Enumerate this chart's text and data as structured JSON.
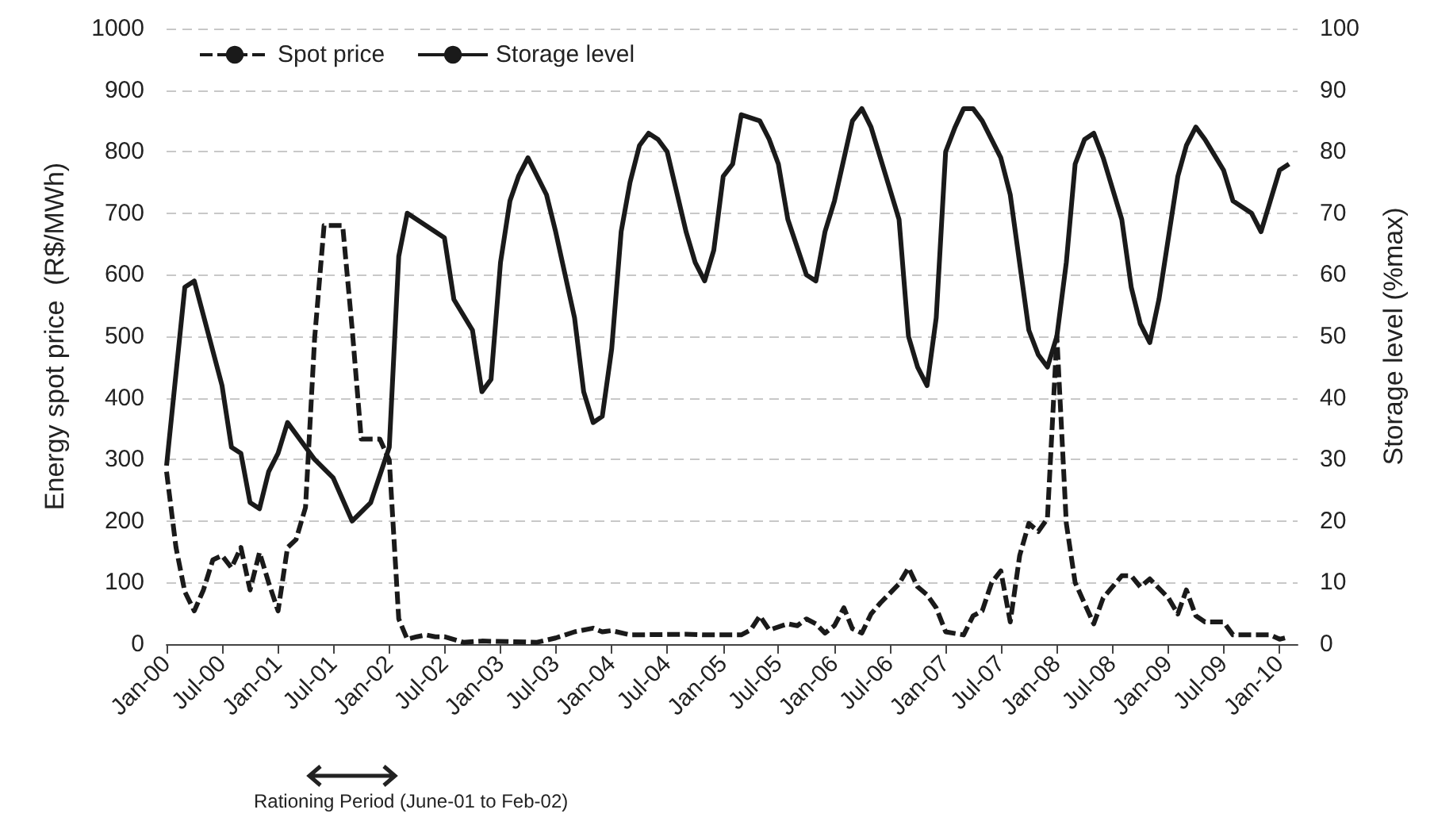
{
  "chart_data": {
    "type": "line",
    "ylabel": "Energy spot price  (R$/MWh)",
    "y2label": "Storage level (%max)",
    "xlim": [
      "2000-01",
      "2010-03"
    ],
    "xticks": [
      {
        "value": "2000-01",
        "label": "Jan-00"
      },
      {
        "value": "2000-07",
        "label": "Jul-00"
      },
      {
        "value": "2001-01",
        "label": "Jan-01"
      },
      {
        "value": "2001-07",
        "label": "Jul-01"
      },
      {
        "value": "2002-01",
        "label": "Jan-02"
      },
      {
        "value": "2002-07",
        "label": "Jul-02"
      },
      {
        "value": "2003-01",
        "label": "Jan-03"
      },
      {
        "value": "2003-07",
        "label": "Jul-03"
      },
      {
        "value": "2004-01",
        "label": "Jan-04"
      },
      {
        "value": "2004-07",
        "label": "Jul-04"
      },
      {
        "value": "2005-01",
        "label": "Jan-05"
      },
      {
        "value": "2005-07",
        "label": "Jul-05"
      },
      {
        "value": "2006-01",
        "label": "Jan-06"
      },
      {
        "value": "2006-07",
        "label": "Jul-06"
      },
      {
        "value": "2007-01",
        "label": "Jan-07"
      },
      {
        "value": "2007-07",
        "label": "Jul-07"
      },
      {
        "value": "2008-01",
        "label": "Jan-08"
      },
      {
        "value": "2008-07",
        "label": "Jul-08"
      },
      {
        "value": "2009-01",
        "label": "Jan-09"
      },
      {
        "value": "2009-07",
        "label": "Jul-09"
      },
      {
        "value": "2010-01",
        "label": "Jan-10"
      }
    ],
    "ylim": [
      0,
      1000
    ],
    "yticks": [
      0,
      100,
      200,
      300,
      400,
      500,
      600,
      700,
      800,
      900,
      1000
    ],
    "y2lim": [
      0,
      100
    ],
    "y2ticks": [
      0,
      10,
      20,
      30,
      40,
      50,
      60,
      70,
      80,
      90,
      100
    ],
    "grid": "y",
    "legend": "top left",
    "marker": "none",
    "annotations": [
      "Rationing Period (June-01 to Feb-02)"
    ],
    "series": [
      {
        "name": "Spot price",
        "color": "#1a1a1a",
        "line_style": "dashed",
        "x": [
          "2000-01",
          "2000-02",
          "2000-03",
          "2000-04",
          "2000-05",
          "2000-06",
          "2000-07",
          "2000-08",
          "2000-09",
          "2000-10",
          "2000-11",
          "2000-12",
          "2001-01",
          "2001-02",
          "2001-03",
          "2001-04",
          "2001-05",
          "2001-06",
          "2001-07",
          "2001-08",
          "2001-09",
          "2001-10",
          "2001-11",
          "2001-12",
          "2002-01",
          "2002-02",
          "2002-03",
          "2002-04",
          "2002-05",
          "2002-06",
          "2002-07",
          "2002-09",
          "2002-11",
          "2003-05",
          "2003-07",
          "2003-09",
          "2003-11",
          "2003-12",
          "2004-01",
          "2004-03",
          "2004-09",
          "2004-11",
          "2005-03",
          "2005-04",
          "2005-05",
          "2005-06",
          "2005-08",
          "2005-09",
          "2005-10",
          "2005-11",
          "2005-12",
          "2006-01",
          "2006-02",
          "2006-03",
          "2006-04",
          "2006-05",
          "2006-06",
          "2006-08",
          "2006-09",
          "2006-10",
          "2006-11",
          "2006-12",
          "2007-01",
          "2007-03",
          "2007-04",
          "2007-05",
          "2007-06",
          "2007-07",
          "2007-08",
          "2007-09",
          "2007-10",
          "2007-11",
          "2007-12",
          "2008-01",
          "2008-02",
          "2008-03",
          "2008-05",
          "2008-06",
          "2008-08",
          "2008-09",
          "2008-10",
          "2008-11",
          "2009-01",
          "2009-02",
          "2009-03",
          "2009-04",
          "2009-05",
          "2009-07",
          "2009-08",
          "2009-12",
          "2010-01",
          "2010-02"
        ],
        "values": [
          280,
          157,
          85,
          54,
          88,
          137,
          144,
          124,
          157,
          88,
          149,
          100,
          54,
          157,
          170,
          222,
          497,
          680,
          680,
          680,
          513,
          333,
          333,
          333,
          299,
          41,
          8,
          12,
          15,
          12,
          12,
          3,
          5,
          3,
          10,
          20,
          26,
          20,
          22,
          15,
          16,
          15,
          15,
          23,
          46,
          23,
          33,
          30,
          41,
          33,
          18,
          30,
          59,
          25,
          18,
          49,
          67,
          98,
          124,
          93,
          80,
          59,
          20,
          15,
          46,
          54,
          100,
          119,
          36,
          144,
          196,
          183,
          204,
          500,
          196,
          100,
          33,
          75,
          111,
          111,
          93,
          106,
          75,
          49,
          88,
          46,
          36,
          36,
          15,
          15,
          8,
          12
        ]
      },
      {
        "name": "Storage level",
        "color": "#1a1a1a",
        "line_style": "solid",
        "axis": "y2",
        "x": [
          "2000-01",
          "2000-03",
          "2000-04",
          "2000-07",
          "2000-08",
          "2000-09",
          "2000-10",
          "2000-11",
          "2000-12",
          "2001-01",
          "2001-02",
          "2001-05",
          "2001-07",
          "2001-09",
          "2001-11",
          "2002-01",
          "2002-02",
          "2002-03",
          "2002-05",
          "2002-07",
          "2002-08",
          "2002-10",
          "2002-11",
          "2002-12",
          "2003-01",
          "2003-02",
          "2003-03",
          "2003-04",
          "2003-06",
          "2003-07",
          "2003-09",
          "2003-10",
          "2003-11",
          "2003-12",
          "2004-01",
          "2004-02",
          "2004-03",
          "2004-04",
          "2004-05",
          "2004-06",
          "2004-07",
          "2004-09",
          "2004-10",
          "2004-11",
          "2004-12",
          "2005-01",
          "2005-02",
          "2005-03",
          "2005-05",
          "2005-06",
          "2005-07",
          "2005-08",
          "2005-10",
          "2005-11",
          "2005-12",
          "2006-01",
          "2006-03",
          "2006-04",
          "2006-05",
          "2006-08",
          "2006-09",
          "2006-10",
          "2006-11",
          "2006-12",
          "2007-01",
          "2007-02",
          "2007-03",
          "2007-04",
          "2007-05",
          "2007-07",
          "2007-08",
          "2007-10",
          "2007-11",
          "2007-12",
          "2008-01",
          "2008-02",
          "2008-03",
          "2008-04",
          "2008-05",
          "2008-06",
          "2008-08",
          "2008-09",
          "2008-10",
          "2008-11",
          "2008-12",
          "2009-02",
          "2009-03",
          "2009-04",
          "2009-05",
          "2009-07",
          "2009-08",
          "2009-10",
          "2009-11",
          "2010-01",
          "2010-02"
        ],
        "values": [
          29,
          58,
          59,
          42,
          32,
          31,
          23,
          22,
          28,
          31,
          36,
          30,
          27,
          20,
          23,
          32,
          63,
          70,
          68,
          66,
          56,
          51,
          41,
          43,
          62,
          72,
          76,
          79,
          73,
          67,
          53,
          41,
          36,
          37,
          48,
          67,
          75,
          81,
          83,
          82,
          80,
          67,
          62,
          59,
          64,
          76,
          78,
          86,
          85,
          82,
          78,
          69,
          60,
          59,
          67,
          72,
          85,
          87,
          84,
          69,
          50,
          45,
          42,
          53,
          80,
          84,
          87,
          87,
          85,
          79,
          73,
          51,
          47,
          45,
          50,
          62,
          78,
          82,
          83,
          79,
          69,
          58,
          52,
          49,
          56,
          76,
          81,
          84,
          82,
          77,
          72,
          70,
          67,
          77,
          78
        ]
      }
    ]
  }
}
